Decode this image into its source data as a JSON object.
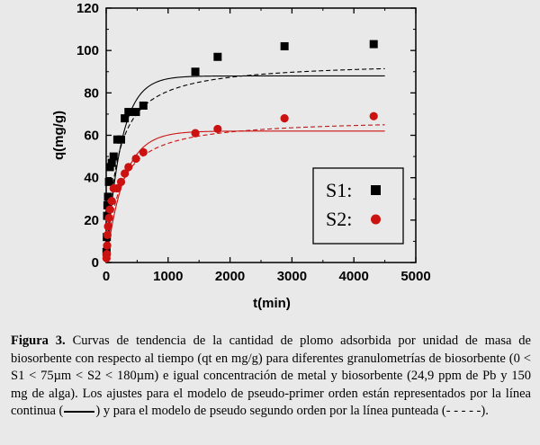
{
  "chart_data": {
    "type": "scatter",
    "xlabel": "t(min)",
    "ylabel": "q(mg/g)",
    "xlim": [
      0,
      5000
    ],
    "ylim": [
      0,
      120
    ],
    "xticks": [
      0,
      1000,
      2000,
      3000,
      4000,
      5000
    ],
    "yticks": [
      0,
      20,
      40,
      60,
      80,
      100,
      120
    ],
    "grid": false,
    "legend_position": "right-middle",
    "series": [
      {
        "name": "S1:",
        "color": "#000000",
        "marker": "square",
        "x": [
          5,
          10,
          15,
          20,
          30,
          45,
          60,
          90,
          120,
          180,
          240,
          300,
          360,
          480,
          600,
          1440,
          1800,
          2880,
          4320
        ],
        "y": [
          5,
          12,
          22,
          27,
          31,
          38,
          45,
          47,
          50,
          58,
          58,
          68,
          71,
          71,
          74,
          90,
          97,
          102,
          103
        ]
      },
      {
        "name": "S2:",
        "color": "#cc1111",
        "marker": "circle",
        "x": [
          5,
          10,
          15,
          20,
          30,
          45,
          60,
          90,
          120,
          180,
          240,
          300,
          360,
          480,
          600,
          1440,
          1800,
          2880,
          4320
        ],
        "y": [
          2,
          4,
          8,
          13,
          17,
          21,
          25,
          29,
          35,
          35,
          38,
          42,
          45,
          49,
          52,
          61,
          63,
          68,
          69
        ]
      }
    ],
    "fits": [
      {
        "series": "S1:",
        "model": "pseudo-first-order",
        "style": "solid",
        "color": "#000000",
        "qe": 88,
        "k": 0.0042
      },
      {
        "series": "S1:",
        "model": "pseudo-second-order",
        "style": "dashed",
        "color": "#000000",
        "qe": 95,
        "k": 6e-05
      },
      {
        "series": "S2:",
        "model": "pseudo-first-order",
        "style": "solid",
        "color": "#cc1111",
        "qe": 62,
        "k": 0.0035
      },
      {
        "series": "S2:",
        "model": "pseudo-second-order",
        "style": "dashed",
        "color": "#cc1111",
        "qe": 68,
        "k": 7e-05
      }
    ]
  },
  "caption": {
    "label": "Figura 3.",
    "text_part1": " Curvas de tendencia de la cantidad de plomo adsorbida por unidad de masa de biosorbente con respecto al tiempo (qt en mg/g) para diferentes granulometrías de biosorbente (0 < S1 < 75µm < S2 < 180µm) e igual concentración de metal y biosorbente (24,9 ppm de Pb y 150 mg de alga). Los ajustes para el modelo de pseudo-primer orden están representados por la línea continua (",
    "text_part2": ") y para el modelo de pseudo segundo orden por la línea punteada (- - - - -)."
  }
}
